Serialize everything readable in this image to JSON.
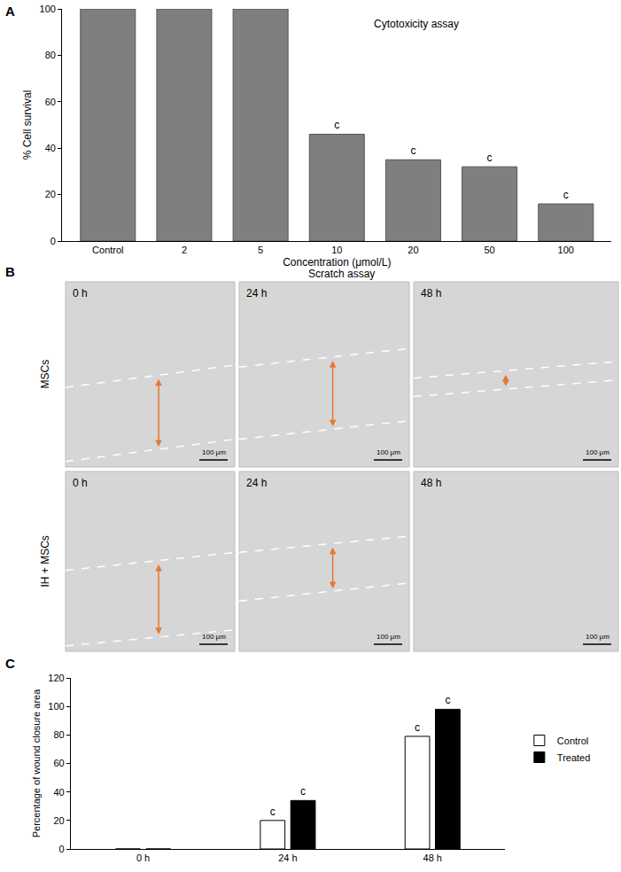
{
  "chart_data": [
    {
      "panel": "A",
      "type": "bar",
      "title": "Cytotoxicity assay",
      "categories": [
        "Control",
        "2",
        "5",
        "10",
        "20",
        "50",
        "100"
      ],
      "values": [
        100,
        100,
        100,
        46,
        35,
        32,
        16
      ],
      "color": "#7f7f7f",
      "xlabel": "Concentration (μmol/L)",
      "ylabel": "% Cell survival",
      "ylim": [
        0,
        100
      ],
      "yticks": [
        0,
        20,
        40,
        60,
        80,
        100
      ],
      "annotations": [
        {
          "category": "10",
          "text": "c"
        },
        {
          "category": "20",
          "text": "c"
        },
        {
          "category": "50",
          "text": "c"
        },
        {
          "category": "100",
          "text": "c"
        }
      ]
    },
    {
      "panel": "C",
      "type": "bar",
      "categories": [
        "0 h",
        "24 h",
        "48 h"
      ],
      "series": [
        {
          "name": "Control",
          "color": "#ffffff",
          "values": [
            0,
            20,
            79
          ]
        },
        {
          "name": "Treated",
          "color": "#000000",
          "values": [
            0,
            34,
            98
          ]
        }
      ],
      "ylabel": "Percentage of wound closure area",
      "ylim": [
        0,
        120
      ],
      "yticks": [
        0,
        20,
        40,
        60,
        80,
        100,
        120
      ],
      "legend": "right",
      "annotations": [
        {
          "category": "24 h",
          "series": "Control",
          "text": "c"
        },
        {
          "category": "24 h",
          "series": "Treated",
          "text": "c"
        },
        {
          "category": "48 h",
          "series": "Control",
          "text": "c"
        },
        {
          "category": "48 h",
          "series": "Treated",
          "text": "c"
        }
      ]
    }
  ],
  "scratch_assay": {
    "panel": "B",
    "title": "Scratch assay",
    "columns": [
      "0 h",
      "24 h",
      "48 h"
    ],
    "rows": [
      "MSCs",
      "IH + MSCs"
    ],
    "scale_bar": "100 μm"
  }
}
